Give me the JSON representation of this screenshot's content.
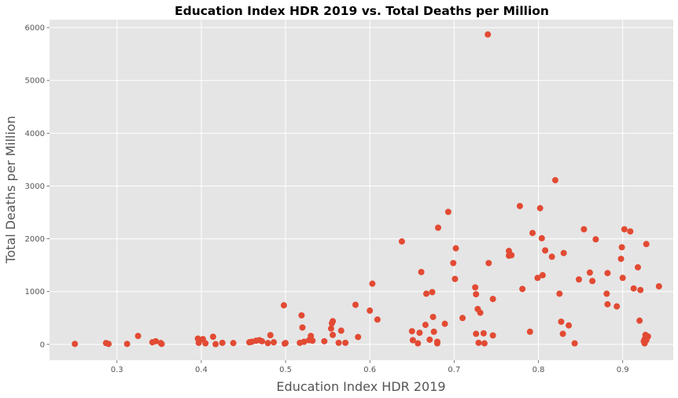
{
  "chart_data": {
    "type": "scatter",
    "title": "Education Index HDR 2019 vs. Total Deaths per Million",
    "xlabel": "Education Index HDR 2019",
    "ylabel": "Total Deaths per Million",
    "xlim": [
      0.22,
      0.96
    ],
    "ylim": [
      -300,
      6150
    ],
    "xticks": [
      0.3,
      0.4,
      0.5,
      0.6,
      0.7,
      0.8,
      0.9
    ],
    "yticks": [
      0,
      1000,
      2000,
      3000,
      4000,
      5000,
      6000
    ],
    "grid": true,
    "series": [
      {
        "color": "#E24A33",
        "points": [
          [
            0.25,
            10
          ],
          [
            0.287,
            25
          ],
          [
            0.29,
            10
          ],
          [
            0.312,
            10
          ],
          [
            0.325,
            160
          ],
          [
            0.342,
            40
          ],
          [
            0.346,
            60
          ],
          [
            0.352,
            25
          ],
          [
            0.353,
            10
          ],
          [
            0.396,
            110
          ],
          [
            0.397,
            30
          ],
          [
            0.402,
            100
          ],
          [
            0.405,
            20
          ],
          [
            0.414,
            145
          ],
          [
            0.417,
            5
          ],
          [
            0.425,
            30
          ],
          [
            0.438,
            25
          ],
          [
            0.457,
            40
          ],
          [
            0.46,
            50
          ],
          [
            0.465,
            70
          ],
          [
            0.469,
            80
          ],
          [
            0.472,
            60
          ],
          [
            0.479,
            25
          ],
          [
            0.482,
            175
          ],
          [
            0.486,
            40
          ],
          [
            0.498,
            740
          ],
          [
            0.499,
            15
          ],
          [
            0.5,
            25
          ],
          [
            0.517,
            30
          ],
          [
            0.519,
            550
          ],
          [
            0.52,
            320
          ],
          [
            0.522,
            50
          ],
          [
            0.528,
            80
          ],
          [
            0.53,
            160
          ],
          [
            0.532,
            70
          ],
          [
            0.546,
            60
          ],
          [
            0.554,
            300
          ],
          [
            0.555,
            400
          ],
          [
            0.556,
            440
          ],
          [
            0.556,
            180
          ],
          [
            0.563,
            30
          ],
          [
            0.566,
            260
          ],
          [
            0.571,
            30
          ],
          [
            0.583,
            750
          ],
          [
            0.586,
            140
          ],
          [
            0.6,
            640
          ],
          [
            0.603,
            1150
          ],
          [
            0.609,
            470
          ],
          [
            0.638,
            1950
          ],
          [
            0.65,
            250
          ],
          [
            0.651,
            80
          ],
          [
            0.657,
            20
          ],
          [
            0.659,
            220
          ],
          [
            0.661,
            1370
          ],
          [
            0.666,
            370
          ],
          [
            0.667,
            960
          ],
          [
            0.671,
            90
          ],
          [
            0.674,
            990
          ],
          [
            0.675,
            520
          ],
          [
            0.676,
            240
          ],
          [
            0.68,
            50
          ],
          [
            0.68,
            20
          ],
          [
            0.681,
            2210
          ],
          [
            0.689,
            390
          ],
          [
            0.693,
            2510
          ],
          [
            0.699,
            1540
          ],
          [
            0.701,
            1240
          ],
          [
            0.702,
            1820
          ],
          [
            0.71,
            500
          ],
          [
            0.725,
            1080
          ],
          [
            0.726,
            950
          ],
          [
            0.726,
            200
          ],
          [
            0.728,
            670
          ],
          [
            0.729,
            30
          ],
          [
            0.731,
            600
          ],
          [
            0.735,
            210
          ],
          [
            0.736,
            20
          ],
          [
            0.74,
            5870
          ],
          [
            0.741,
            1540
          ],
          [
            0.746,
            860
          ],
          [
            0.746,
            170
          ],
          [
            0.765,
            1770
          ],
          [
            0.765,
            1680
          ],
          [
            0.768,
            1690
          ],
          [
            0.778,
            2620
          ],
          [
            0.781,
            1050
          ],
          [
            0.79,
            240
          ],
          [
            0.793,
            2110
          ],
          [
            0.799,
            1260
          ],
          [
            0.802,
            2580
          ],
          [
            0.804,
            2010
          ],
          [
            0.805,
            1310
          ],
          [
            0.808,
            1780
          ],
          [
            0.816,
            1660
          ],
          [
            0.82,
            3110
          ],
          [
            0.825,
            960
          ],
          [
            0.827,
            430
          ],
          [
            0.829,
            200
          ],
          [
            0.83,
            1730
          ],
          [
            0.836,
            360
          ],
          [
            0.843,
            20
          ],
          [
            0.848,
            1230
          ],
          [
            0.854,
            2180
          ],
          [
            0.861,
            1360
          ],
          [
            0.864,
            1200
          ],
          [
            0.868,
            1990
          ],
          [
            0.881,
            960
          ],
          [
            0.882,
            760
          ],
          [
            0.882,
            1350
          ],
          [
            0.893,
            720
          ],
          [
            0.898,
            1620
          ],
          [
            0.899,
            1840
          ],
          [
            0.9,
            1260
          ],
          [
            0.902,
            2180
          ],
          [
            0.909,
            2140
          ],
          [
            0.913,
            1060
          ],
          [
            0.918,
            1460
          ],
          [
            0.92,
            450
          ],
          [
            0.921,
            1030
          ],
          [
            0.925,
            60
          ],
          [
            0.926,
            20
          ],
          [
            0.926,
            100
          ],
          [
            0.927,
            180
          ],
          [
            0.928,
            1900
          ],
          [
            0.928,
            80
          ],
          [
            0.93,
            150
          ],
          [
            0.943,
            1100
          ]
        ]
      }
    ]
  }
}
